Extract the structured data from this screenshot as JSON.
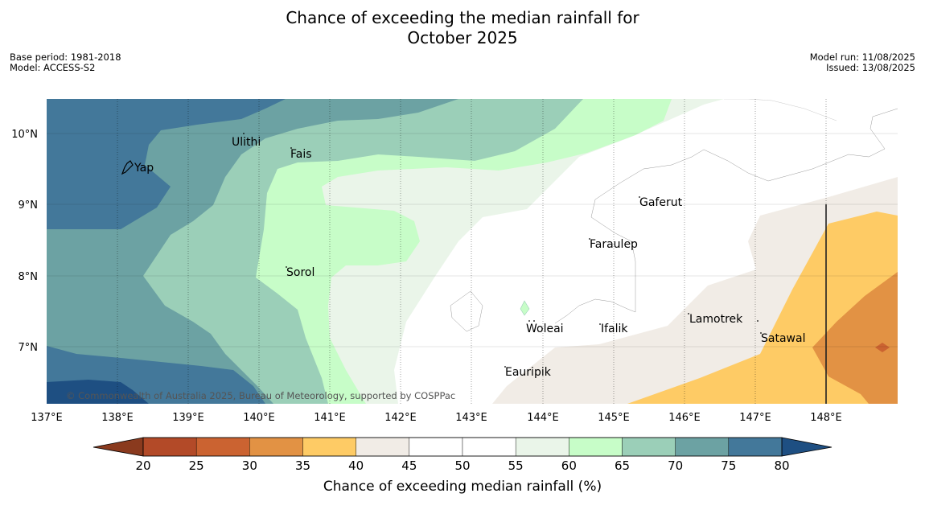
{
  "title_line1": "Chance of exceeding the median rainfall for",
  "title_line2": "October 2025",
  "meta_left": [
    "Base period: 1981-2018",
    "Model: ACCESS-S2"
  ],
  "meta_right": [
    "Model run: 11/08/2025",
    "Issued: 13/08/2025"
  ],
  "copyright": "© Commonwealth of Australia 2025, Bureau of Meteorology, supported by COSPPac",
  "map": {
    "lon_ticks": [
      "137°E",
      "138°E",
      "139°E",
      "140°E",
      "141°E",
      "142°E",
      "143°E",
      "144°E",
      "145°E",
      "146°E",
      "147°E",
      "148°E"
    ],
    "lat_ticks": [
      "10°N",
      "9°N",
      "8°N",
      "7°N"
    ],
    "places": [
      {
        "name": "Ulithi"
      },
      {
        "name": "Fais"
      },
      {
        "name": "Yap"
      },
      {
        "name": "Gaferut"
      },
      {
        "name": "Faraulep"
      },
      {
        "name": "Sorol"
      },
      {
        "name": "Lamotrek"
      },
      {
        "name": "Woleai"
      },
      {
        "name": "Ifalik"
      },
      {
        "name": "Satawal"
      },
      {
        "name": "Eauripik"
      }
    ]
  },
  "colorbar": {
    "ticks": [
      "20",
      "25",
      "30",
      "35",
      "40",
      "45",
      "50",
      "55",
      "60",
      "65",
      "70",
      "75",
      "80"
    ],
    "colors": [
      "#b34a28",
      "#cb6331",
      "#e29244",
      "#fecb65",
      "#f1ece6",
      "#ffffff",
      "#ffffff",
      "#eaf5e9",
      "#c7fdc8",
      "#9bcfb8",
      "#6ca2a3",
      "#43789a"
    ],
    "low_color": "#8a3a1e",
    "high_color": "#1e4f82",
    "label": "Chance of exceeding median rainfall (%)"
  }
}
